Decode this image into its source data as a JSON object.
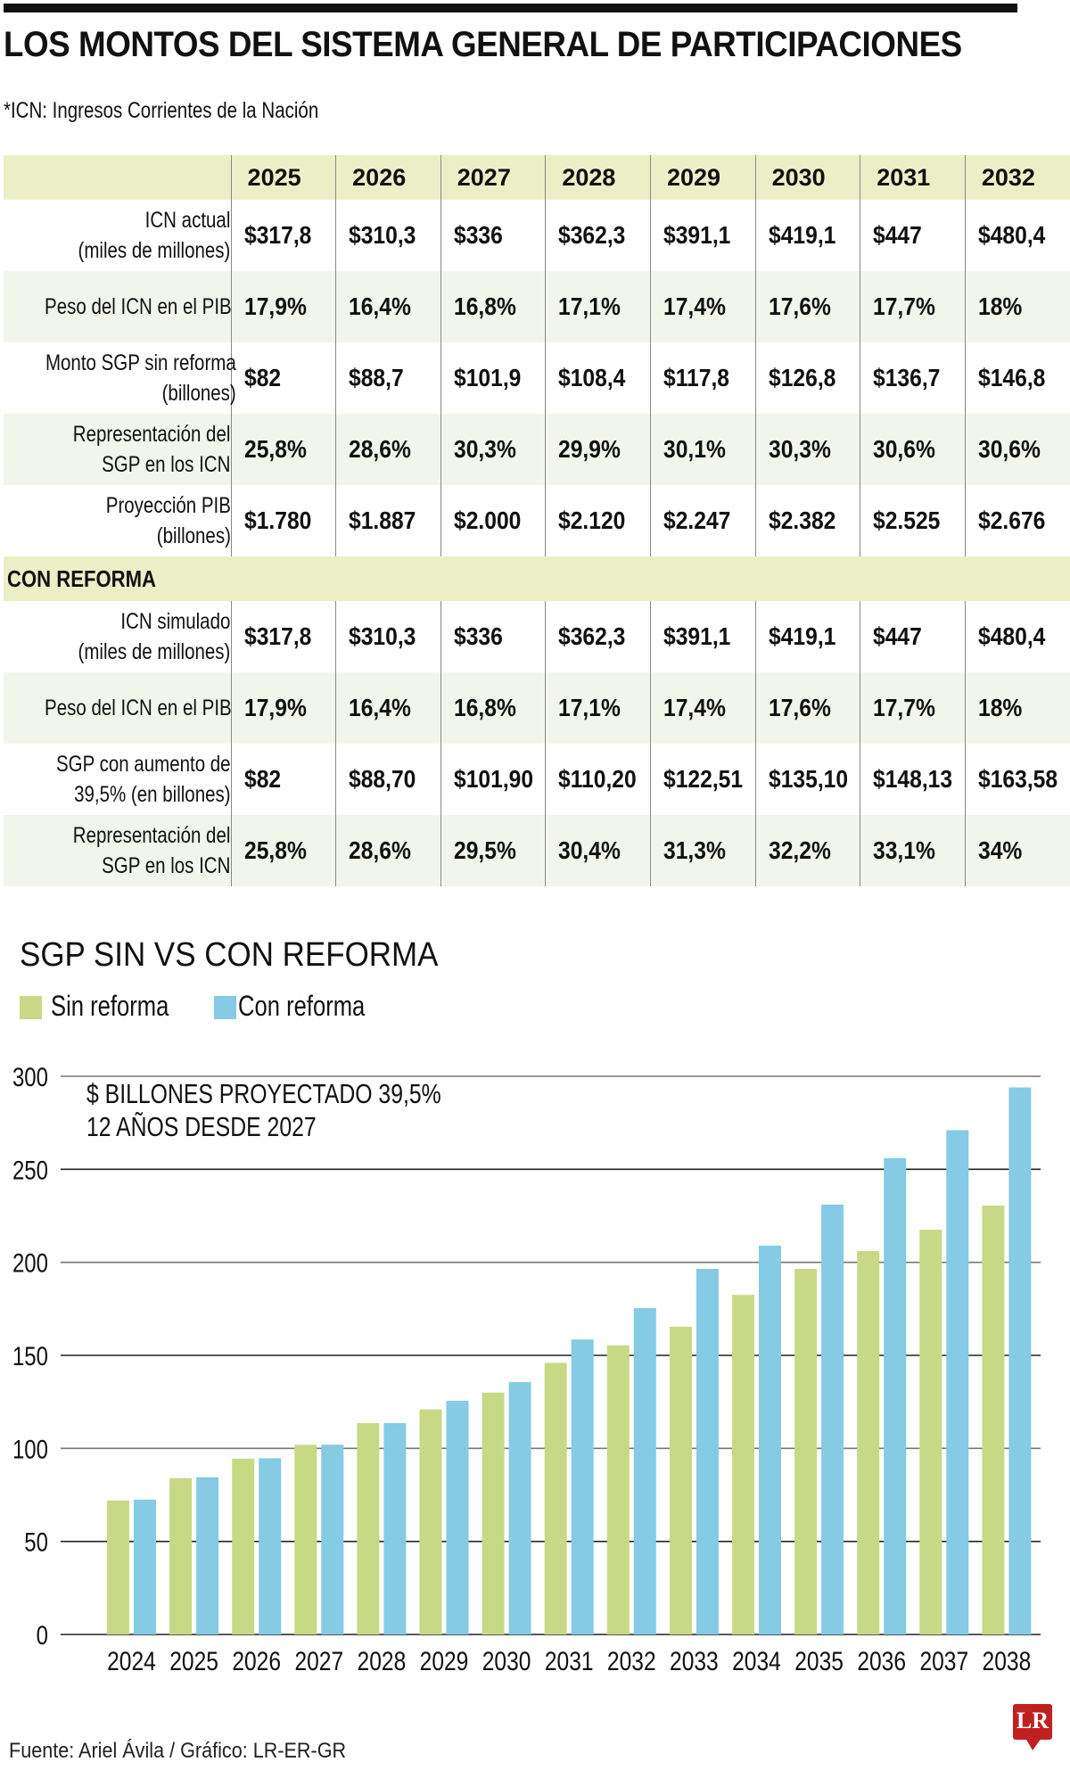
{
  "header": {
    "title": "LOS MONTOS DEL SISTEMA GENERAL DE PARTICIPACIONES",
    "subtitle": "*ICN: Ingresos Corrientes de la Nación"
  },
  "table": {
    "years": [
      "2025",
      "2026",
      "2027",
      "2028",
      "2029",
      "2030",
      "2031",
      "2032"
    ],
    "sin_reforma_rows": [
      {
        "label": [
          "ICN actual",
          "(miles de millones)"
        ],
        "values": [
          "$317,8",
          "$310,3",
          "$336",
          "$362,3",
          "$391,1",
          "$419,1",
          "$447",
          "$480,4"
        ]
      },
      {
        "label": [
          "Peso del ICN en el PIB"
        ],
        "values": [
          "17,9%",
          "16,4%",
          "16,8%",
          "17,1%",
          "17,4%",
          "17,6%",
          "17,7%",
          "18%"
        ]
      },
      {
        "label": [
          "Monto SGP sin reforma",
          "(billones)"
        ],
        "values": [
          "$82",
          "$88,7",
          "$101,9",
          "$108,4",
          "$117,8",
          "$126,8",
          "$136,7",
          "$146,8"
        ]
      },
      {
        "label": [
          "Representación del",
          "SGP en los ICN"
        ],
        "values": [
          "25,8%",
          "28,6%",
          "30,3%",
          "29,9%",
          "30,1%",
          "30,3%",
          "30,6%",
          "30,6%"
        ]
      },
      {
        "label": [
          "Proyección PIB",
          "(billones)"
        ],
        "values": [
          "$1.780",
          "$1.887",
          "$2.000",
          "$2.120",
          "$2.247",
          "$2.382",
          "$2.525",
          "$2.676"
        ]
      }
    ],
    "section_label": "CON REFORMA",
    "con_reforma_rows": [
      {
        "label": [
          "ICN simulado",
          "(miles de millones)"
        ],
        "values": [
          "$317,8",
          "$310,3",
          "$336",
          "$362,3",
          "$391,1",
          "$419,1",
          "$447",
          "$480,4"
        ]
      },
      {
        "label": [
          "Peso del ICN en el PIB"
        ],
        "values": [
          "17,9%",
          "16,4%",
          "16,8%",
          "17,1%",
          "17,4%",
          "17,6%",
          "17,7%",
          "18%"
        ]
      },
      {
        "label": [
          "SGP con aumento de",
          "39,5% (en billones)"
        ],
        "values": [
          "$82",
          "$88,70",
          "$101,90",
          "$110,20",
          "$122,51",
          "$135,10",
          "$148,13",
          "$163,58"
        ]
      },
      {
        "label": [
          "Representación del",
          "SGP en los ICN"
        ],
        "values": [
          "25,8%",
          "28,6%",
          "29,5%",
          "30,4%",
          "31,3%",
          "32,2%",
          "33,1%",
          "34%"
        ]
      }
    ]
  },
  "chart_data": {
    "type": "bar",
    "title": "SGP SIN VS CON REFORMA",
    "annotation": [
      "$ BILLONES PROYECTADO 39,5%",
      "12 AÑOS DESDE 2027"
    ],
    "categories": [
      "2024",
      "2025",
      "2026",
      "2027",
      "2028",
      "2029",
      "2030",
      "2031",
      "2032",
      "2033",
      "2034",
      "2035",
      "2036",
      "2037",
      "2038"
    ],
    "series": [
      {
        "name": "Sin reforma",
        "color": "#c7d985",
        "values": [
          72,
          84,
          94.5,
          101.9,
          113.6,
          121,
          130,
          146,
          155.4,
          165.4,
          182.5,
          196.5,
          206,
          217.5,
          230.5
        ]
      },
      {
        "name": "Con reforma",
        "color": "#84cbe3",
        "values": [
          72.5,
          84.5,
          94.7,
          102,
          113.6,
          125.6,
          135.6,
          158.5,
          175.4,
          196.5,
          209,
          231,
          256,
          271,
          294
        ]
      }
    ],
    "xlabel": "",
    "ylabel": "",
    "ylim": [
      0,
      300
    ],
    "yticks": [
      0,
      50,
      100,
      150,
      200,
      250,
      300
    ],
    "grid": true,
    "legend": "top-left"
  },
  "footer": {
    "source": "Fuente: Ariel Ávila / Gráfico: LR-ER-GR",
    "logo": "LR"
  }
}
